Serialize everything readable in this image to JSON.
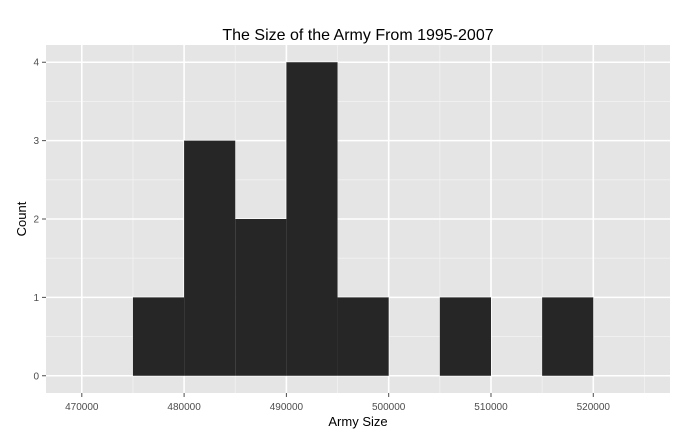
{
  "chart_data": {
    "type": "bar",
    "title": "The Size of the Army From 1995-2007",
    "xlabel": "Army Size",
    "ylabel": "Count",
    "xlim": [
      466500,
      527500
    ],
    "ylim": [
      -0.22,
      4.22
    ],
    "x_ticks": [
      470000,
      480000,
      490000,
      500000,
      510000,
      520000
    ],
    "x_tick_labels": [
      "470000",
      "480000",
      "490000",
      "500000",
      "510000",
      "520000"
    ],
    "y_ticks": [
      0,
      1,
      2,
      3,
      4
    ],
    "y_tick_labels": [
      "0",
      "1",
      "2",
      "3",
      "4"
    ],
    "bin_width": 5000,
    "bins": [
      {
        "x0": 475000,
        "x1": 480000,
        "count": 1
      },
      {
        "x0": 480000,
        "x1": 485000,
        "count": 3
      },
      {
        "x0": 485000,
        "x1": 490000,
        "count": 2
      },
      {
        "x0": 490000,
        "x1": 495000,
        "count": 4
      },
      {
        "x0": 495000,
        "x1": 500000,
        "count": 1
      },
      {
        "x0": 500000,
        "x1": 505000,
        "count": 0
      },
      {
        "x0": 505000,
        "x1": 510000,
        "count": 1
      },
      {
        "x0": 510000,
        "x1": 515000,
        "count": 0
      },
      {
        "x0": 515000,
        "x1": 520000,
        "count": 1
      }
    ],
    "grid": true,
    "legend": "none",
    "colors": {
      "panel": "#e5e5e5",
      "grid_major": "#ffffff",
      "grid_minor": "#f2f2f2",
      "bar": "#262626",
      "tick": "#4d4d4d"
    }
  }
}
